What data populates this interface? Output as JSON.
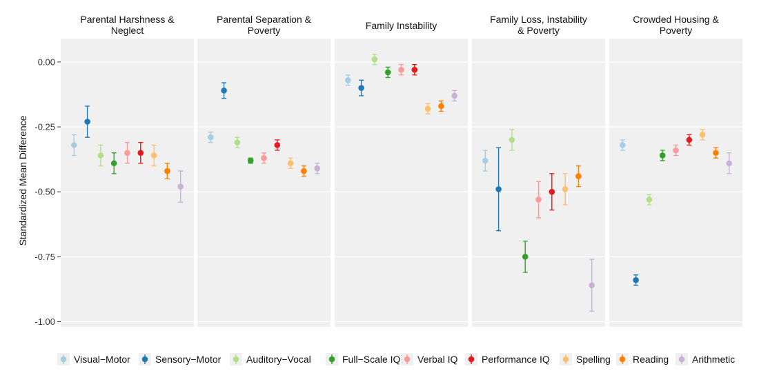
{
  "chart_data": {
    "type": "scatter",
    "ylabel": "Standardized Mean Difference",
    "xlabel": "",
    "ylim": [
      -1.02,
      0.09
    ],
    "y_ticks": [
      0.0,
      -0.25,
      -0.5,
      -0.75,
      -1.0
    ],
    "y_tick_labels": [
      "0.00",
      "-0.25",
      "-0.50",
      "-0.75",
      "-1.00"
    ],
    "grid": true,
    "legend_position": "bottom",
    "series": [
      {
        "name": "Visual−Motor",
        "color": "#a6cee3"
      },
      {
        "name": "Sensory−Motor",
        "color": "#1f78b4"
      },
      {
        "name": "Auditory−Vocal",
        "color": "#b2df8a"
      },
      {
        "name": "Full−Scale IQ",
        "color": "#33a02c"
      },
      {
        "name": "Verbal IQ",
        "color": "#fb9a99"
      },
      {
        "name": "Performance IQ",
        "color": "#e31a1c"
      },
      {
        "name": "Spelling",
        "color": "#fdbf6f"
      },
      {
        "name": "Reading",
        "color": "#ff7f00"
      },
      {
        "name": "Arithmetic",
        "color": "#cab2d6"
      }
    ],
    "panels": [
      {
        "title": [
          "Parental Harshness &",
          "Neglect"
        ],
        "points": [
          {
            "mean": -0.32,
            "lo": -0.36,
            "hi": -0.28
          },
          {
            "mean": -0.23,
            "lo": -0.29,
            "hi": -0.17
          },
          {
            "mean": -0.36,
            "lo": -0.4,
            "hi": -0.32
          },
          {
            "mean": -0.39,
            "lo": -0.43,
            "hi": -0.35
          },
          {
            "mean": -0.35,
            "lo": -0.39,
            "hi": -0.31
          },
          {
            "mean": -0.35,
            "lo": -0.39,
            "hi": -0.31
          },
          {
            "mean": -0.36,
            "lo": -0.4,
            "hi": -0.32
          },
          {
            "mean": -0.42,
            "lo": -0.45,
            "hi": -0.39
          },
          {
            "mean": -0.48,
            "lo": -0.54,
            "hi": -0.42
          }
        ]
      },
      {
        "title": [
          "Parental Separation &",
          "Poverty"
        ],
        "points": [
          {
            "mean": -0.29,
            "lo": -0.31,
            "hi": -0.27
          },
          {
            "mean": -0.11,
            "lo": -0.14,
            "hi": -0.08
          },
          {
            "mean": -0.31,
            "lo": -0.33,
            "hi": -0.29
          },
          {
            "mean": -0.38,
            "lo": -0.39,
            "hi": -0.37
          },
          {
            "mean": -0.37,
            "lo": -0.39,
            "hi": -0.35
          },
          {
            "mean": -0.32,
            "lo": -0.34,
            "hi": -0.3
          },
          {
            "mean": -0.39,
            "lo": -0.41,
            "hi": -0.37
          },
          {
            "mean": -0.42,
            "lo": -0.44,
            "hi": -0.4
          },
          {
            "mean": -0.41,
            "lo": -0.43,
            "hi": -0.39
          }
        ]
      },
      {
        "title": [
          "Family Instability"
        ],
        "points": [
          {
            "mean": -0.07,
            "lo": -0.09,
            "hi": -0.05
          },
          {
            "mean": -0.1,
            "lo": -0.13,
            "hi": -0.07
          },
          {
            "mean": 0.01,
            "lo": -0.01,
            "hi": 0.03
          },
          {
            "mean": -0.04,
            "lo": -0.06,
            "hi": -0.02
          },
          {
            "mean": -0.03,
            "lo": -0.05,
            "hi": -0.01
          },
          {
            "mean": -0.03,
            "lo": -0.05,
            "hi": -0.01
          },
          {
            "mean": -0.18,
            "lo": -0.2,
            "hi": -0.16
          },
          {
            "mean": -0.17,
            "lo": -0.19,
            "hi": -0.15
          },
          {
            "mean": -0.13,
            "lo": -0.15,
            "hi": -0.11
          }
        ]
      },
      {
        "title": [
          "Family Loss, Instability",
          "& Poverty"
        ],
        "points": [
          {
            "mean": -0.38,
            "lo": -0.42,
            "hi": -0.34
          },
          {
            "mean": -0.49,
            "lo": -0.65,
            "hi": -0.33
          },
          {
            "mean": -0.3,
            "lo": -0.34,
            "hi": -0.26
          },
          {
            "mean": -0.75,
            "lo": -0.81,
            "hi": -0.69
          },
          {
            "mean": -0.53,
            "lo": -0.6,
            "hi": -0.46
          },
          {
            "mean": -0.5,
            "lo": -0.57,
            "hi": -0.43
          },
          {
            "mean": -0.49,
            "lo": -0.55,
            "hi": -0.43
          },
          {
            "mean": -0.44,
            "lo": -0.48,
            "hi": -0.4
          },
          {
            "mean": -0.86,
            "lo": -0.96,
            "hi": -0.76
          }
        ]
      },
      {
        "title": [
          "Crowded Housing &",
          "Poverty"
        ],
        "points": [
          {
            "mean": -0.32,
            "lo": -0.34,
            "hi": -0.3
          },
          {
            "mean": -0.84,
            "lo": -0.86,
            "hi": -0.82
          },
          {
            "mean": -0.53,
            "lo": -0.55,
            "hi": -0.51
          },
          {
            "mean": -0.36,
            "lo": -0.38,
            "hi": -0.34
          },
          {
            "mean": -0.34,
            "lo": -0.36,
            "hi": -0.32
          },
          {
            "mean": -0.3,
            "lo": -0.32,
            "hi": -0.28
          },
          {
            "mean": -0.28,
            "lo": -0.3,
            "hi": -0.26
          },
          {
            "mean": -0.35,
            "lo": -0.37,
            "hi": -0.33
          },
          {
            "mean": -0.39,
            "lo": -0.43,
            "hi": -0.35
          }
        ]
      }
    ]
  }
}
